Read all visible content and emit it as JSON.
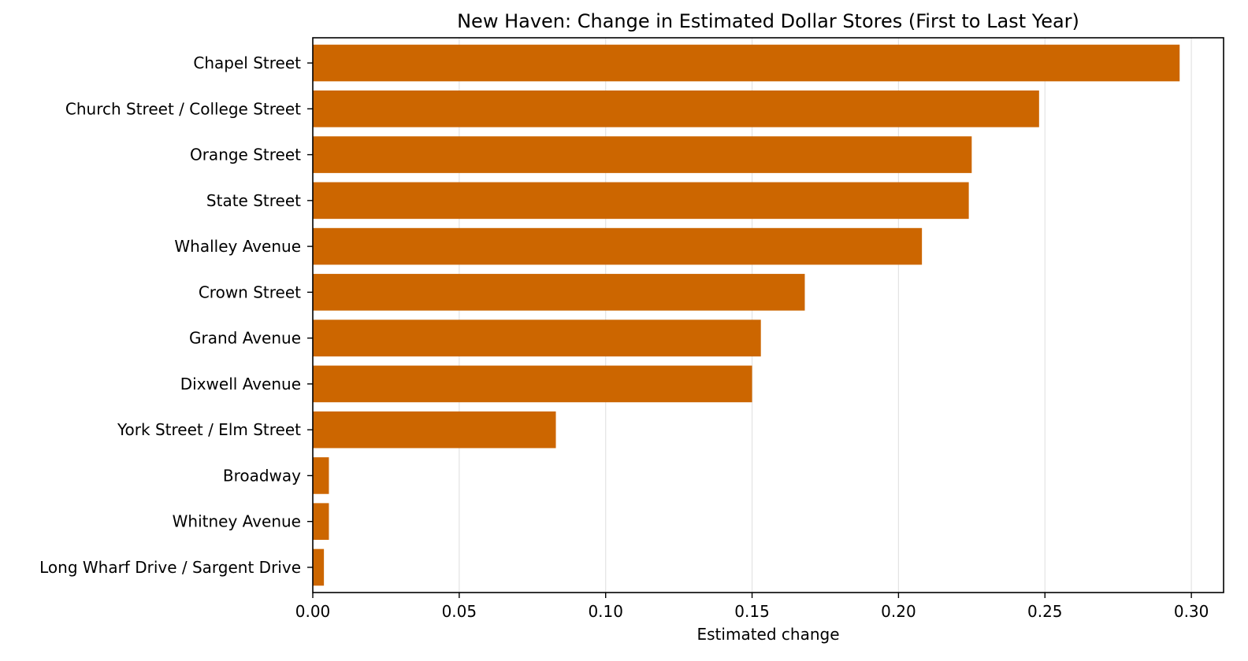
{
  "chart_data": {
    "type": "bar",
    "orientation": "horizontal",
    "title": "New Haven: Change in Estimated Dollar Stores (First to Last Year)",
    "xlabel": "Estimated change",
    "ylabel": "",
    "xlim": [
      0,
      0.311
    ],
    "x_ticks": [
      0.0,
      0.05,
      0.1,
      0.15,
      0.2,
      0.25,
      0.3
    ],
    "x_tick_labels": [
      "0.00",
      "0.05",
      "0.10",
      "0.15",
      "0.20",
      "0.25",
      "0.30"
    ],
    "grid": "x",
    "bar_color": "#cc6600",
    "categories": [
      "Chapel Street",
      "Church Street / College Street",
      "Orange Street",
      "State Street",
      "Whalley Avenue",
      "Crown Street",
      "Grand Avenue",
      "Dixwell Avenue",
      "York Street / Elm Street",
      "Broadway",
      "Whitney Avenue",
      "Long Wharf Drive / Sargent Drive"
    ],
    "values": [
      0.296,
      0.248,
      0.225,
      0.224,
      0.208,
      0.168,
      0.153,
      0.15,
      0.083,
      0.0055,
      0.0055,
      0.0038
    ]
  }
}
